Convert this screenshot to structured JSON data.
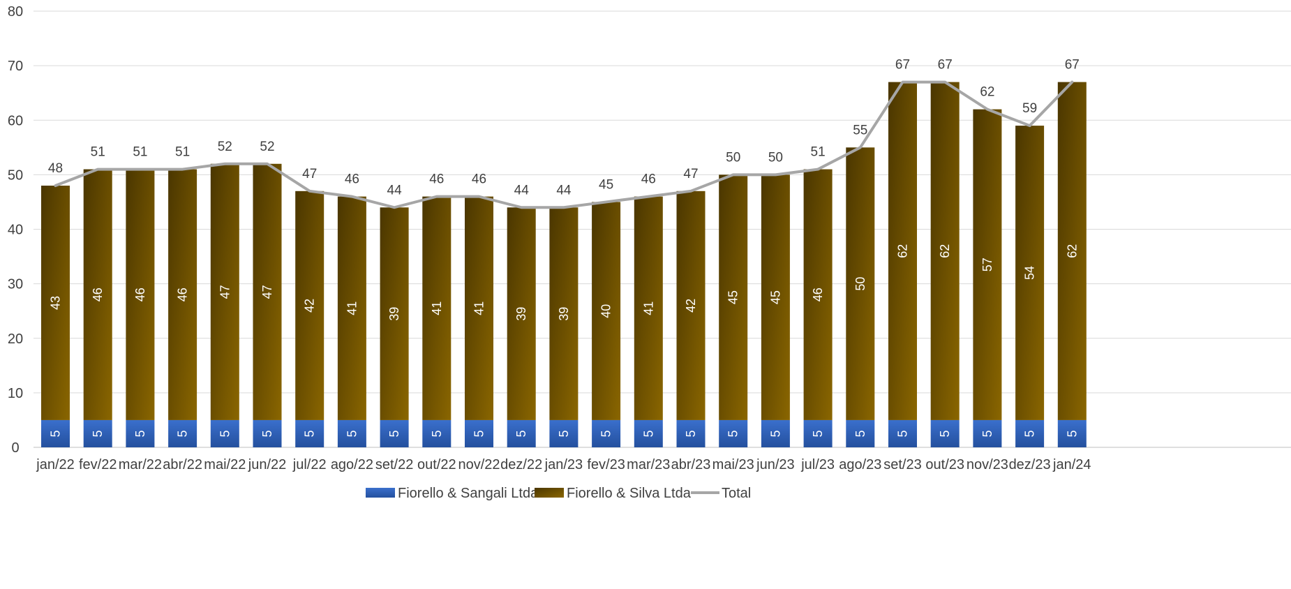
{
  "chart_data": {
    "type": "bar",
    "stacked": true,
    "categories": [
      "jan/22",
      "fev/22",
      "mar/22",
      "abr/22",
      "mai/22",
      "jun/22",
      "jul/22",
      "ago/22",
      "set/22",
      "out/22",
      "nov/22",
      "dez/22",
      "jan/23",
      "fev/23",
      "mar/23",
      "abr/23",
      "mai/23",
      "jun/23",
      "jul/23",
      "ago/23",
      "set/23",
      "out/23",
      "nov/23",
      "dez/23",
      "jan/24"
    ],
    "series": [
      {
        "name": "Fiorello & Sangali Ltda",
        "type": "bar",
        "color": "#2E5FB5",
        "values": [
          5,
          5,
          5,
          5,
          5,
          5,
          5,
          5,
          5,
          5,
          5,
          5,
          5,
          5,
          5,
          5,
          5,
          5,
          5,
          5,
          5,
          5,
          5,
          5,
          5
        ]
      },
      {
        "name": "Fiorello & Silva Ltda",
        "type": "bar",
        "color": "#7A5A00",
        "values": [
          43,
          46,
          46,
          46,
          47,
          47,
          42,
          41,
          39,
          41,
          41,
          39,
          39,
          40,
          41,
          42,
          45,
          45,
          46,
          50,
          62,
          62,
          57,
          54,
          62
        ]
      },
      {
        "name": "Total",
        "type": "line",
        "color": "#A6A6A6",
        "values": [
          48,
          51,
          51,
          51,
          52,
          52,
          47,
          46,
          44,
          46,
          46,
          44,
          44,
          45,
          46,
          47,
          50,
          50,
          51,
          55,
          67,
          67,
          62,
          59,
          67
        ]
      }
    ],
    "ylim": [
      0,
      80
    ],
    "yticks": [
      0,
      10,
      20,
      30,
      40,
      50,
      60,
      70,
      80
    ],
    "grid": true,
    "legend_position": "bottom"
  }
}
